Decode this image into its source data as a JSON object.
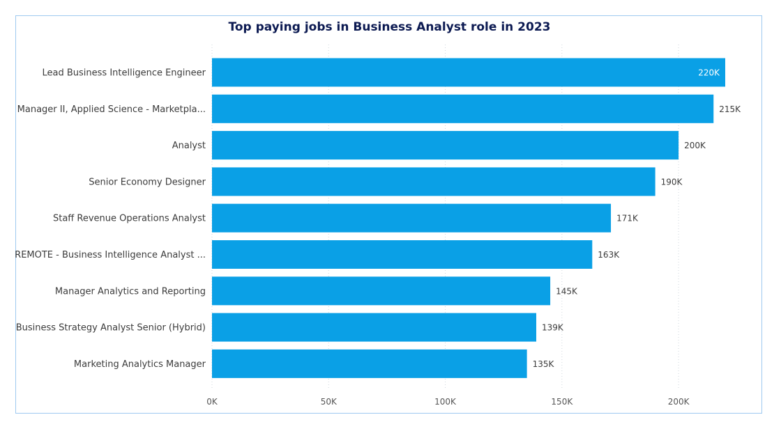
{
  "chart_data": {
    "type": "bar",
    "orientation": "horizontal",
    "title": "Top paying jobs in Business Analyst role in 2023",
    "categories": [
      "Lead Business Intelligence Engineer",
      "Manager II, Applied Science - Marketpla...",
      "Analyst",
      "Senior Economy Designer",
      "Staff Revenue Operations Analyst",
      "REMOTE - Business Intelligence Analyst ...",
      "Manager Analytics and Reporting",
      "Business Strategy Analyst Senior (Hybrid)",
      "Marketing Analytics Manager"
    ],
    "values": [
      220000,
      215000,
      200000,
      190000,
      171000,
      163000,
      145000,
      139000,
      135000
    ],
    "value_labels": [
      "220K",
      "215K",
      "200K",
      "190K",
      "171K",
      "163K",
      "145K",
      "139K",
      "135K"
    ],
    "xticks": [
      0,
      50000,
      100000,
      150000,
      200000
    ],
    "xtick_labels": [
      "0K",
      "50K",
      "100K",
      "150K",
      "200K"
    ],
    "xlim": [
      0,
      220000
    ],
    "grid": true,
    "colors": {
      "bar": "#0aa0e6",
      "title": "#0c1a52",
      "label": "#3b3b3b",
      "inside_label": "#ffffff",
      "grid": "#cfd6dd",
      "frame": "#9ec9f0"
    }
  }
}
